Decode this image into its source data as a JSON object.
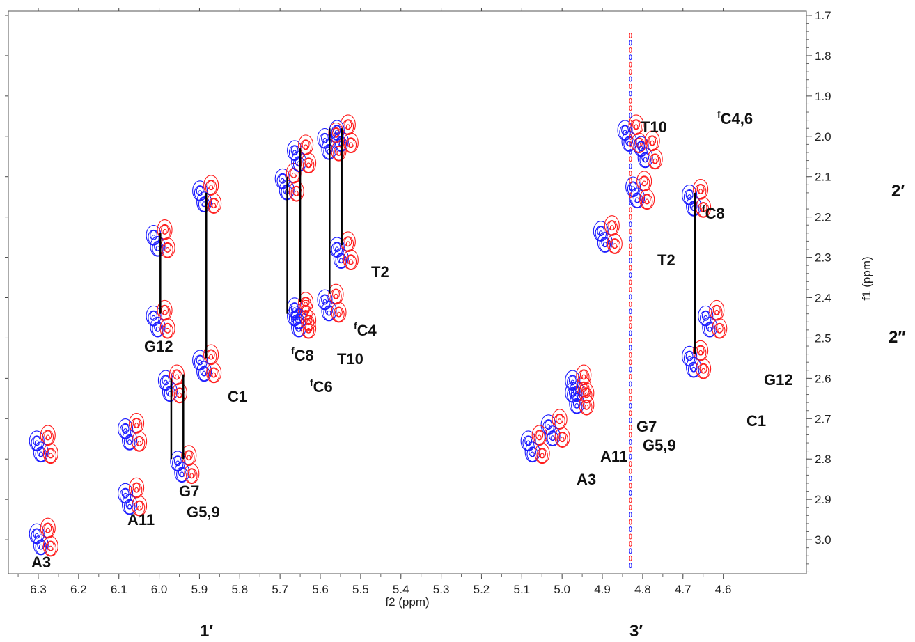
{
  "chart_data": {
    "type": "contour",
    "xlabel": "f2 (ppm)",
    "ylabel": "f1 (ppm)",
    "xlim": [
      6.35,
      4.59
    ],
    "ylim": [
      1.7,
      3.1
    ],
    "x_ticks": [
      "6.3",
      "6.2",
      "6.1",
      "6.0",
      "5.9",
      "5.8",
      "5.7",
      "5.6",
      "5.5",
      "5.4",
      "5.3",
      "5.2",
      "5.1",
      "5.0",
      "4.9",
      "4.8",
      "4.7",
      "4.6"
    ],
    "y_ticks": [
      "1.7",
      "1.8",
      "1.9",
      "2.0",
      "2.1",
      "2.2",
      "2.3",
      "2.4",
      "2.5",
      "2.6",
      "2.7",
      "2.8",
      "2.9",
      "3.0"
    ],
    "contour_colors": {
      "positive": "#1a1aff",
      "negative": "#ff1a1a"
    },
    "region_labels": [
      "1′",
      "3′",
      "2′",
      "2″"
    ],
    "connectors": [
      {
        "x": 5.997,
        "y1": 2.24,
        "y2": 2.44
      },
      {
        "x": 5.883,
        "y1": 2.14,
        "y2": 2.55
      },
      {
        "x": 5.97,
        "y1": 2.6,
        "y2": 2.8
      },
      {
        "x": 5.94,
        "y1": 2.59,
        "y2": 2.8
      },
      {
        "x": 5.682,
        "y1": 2.1,
        "y2": 2.44
      },
      {
        "x": 5.65,
        "y1": 2.03,
        "y2": 2.41
      },
      {
        "x": 5.577,
        "y1": 1.98,
        "y2": 2.39
      },
      {
        "x": 5.547,
        "y1": 1.98,
        "y2": 2.27
      },
      {
        "x": 4.67,
        "y1": 2.14,
        "y2": 2.54
      }
    ],
    "peaks": [
      {
        "label": "A3",
        "x": 6.29,
        "y": 2.75,
        "phase": "both"
      },
      {
        "label": "A3",
        "x": 6.29,
        "y": 2.98,
        "phase": "both"
      },
      {
        "label": "A11",
        "x": 6.07,
        "y": 2.72,
        "phase": "both"
      },
      {
        "label": "A11",
        "x": 6.07,
        "y": 2.88,
        "phase": "both"
      },
      {
        "label": "G12",
        "x": 6.0,
        "y": 2.24,
        "phase": "both"
      },
      {
        "label": "G12",
        "x": 6.0,
        "y": 2.44,
        "phase": "both"
      },
      {
        "label": "C1",
        "x": 5.885,
        "y": 2.13,
        "phase": "both"
      },
      {
        "label": "C1",
        "x": 5.885,
        "y": 2.55,
        "phase": "both"
      },
      {
        "label": "G7",
        "x": 5.97,
        "y": 2.6,
        "phase": "both"
      },
      {
        "label": "G5,9",
        "x": 5.94,
        "y": 2.8,
        "phase": "both"
      },
      {
        "label": "fC8",
        "x": 5.68,
        "y": 2.1,
        "phase": "both"
      },
      {
        "label": "fC6",
        "x": 5.65,
        "y": 2.44,
        "phase": "both"
      },
      {
        "label": "T10",
        "x": 5.65,
        "y": 2.03,
        "phase": "both"
      },
      {
        "label": "T10",
        "x": 5.65,
        "y": 2.42,
        "phase": "both"
      },
      {
        "label": "fC4",
        "x": 5.575,
        "y": 2.0,
        "phase": "both"
      },
      {
        "label": "fC4",
        "x": 5.575,
        "y": 2.4,
        "phase": "both"
      },
      {
        "label": "T2",
        "x": 5.545,
        "y": 1.98,
        "phase": "both"
      },
      {
        "label": "T2",
        "x": 5.545,
        "y": 2.27,
        "phase": "both"
      },
      {
        "label": "T10",
        "x": 4.83,
        "y": 1.98,
        "phase": "both"
      },
      {
        "label": "fC4,6",
        "x": 4.79,
        "y": 2.02,
        "phase": "both"
      },
      {
        "label": "fC8",
        "x": 4.81,
        "y": 2.12,
        "phase": "both"
      },
      {
        "label": "T2",
        "x": 4.89,
        "y": 2.23,
        "phase": "both"
      },
      {
        "label": "G7",
        "x": 4.96,
        "y": 2.6,
        "phase": "both"
      },
      {
        "label": "G5,9",
        "x": 4.96,
        "y": 2.63,
        "phase": "both"
      },
      {
        "label": "A11",
        "x": 5.02,
        "y": 2.71,
        "phase": "both"
      },
      {
        "label": "A3",
        "x": 5.07,
        "y": 2.75,
        "phase": "both"
      },
      {
        "label": "C1",
        "x": 4.67,
        "y": 2.14,
        "phase": "both"
      },
      {
        "label": "G12",
        "x": 4.67,
        "y": 2.54,
        "phase": "both"
      },
      {
        "label": "G12",
        "x": 4.63,
        "y": 2.44,
        "phase": "both"
      }
    ]
  }
}
